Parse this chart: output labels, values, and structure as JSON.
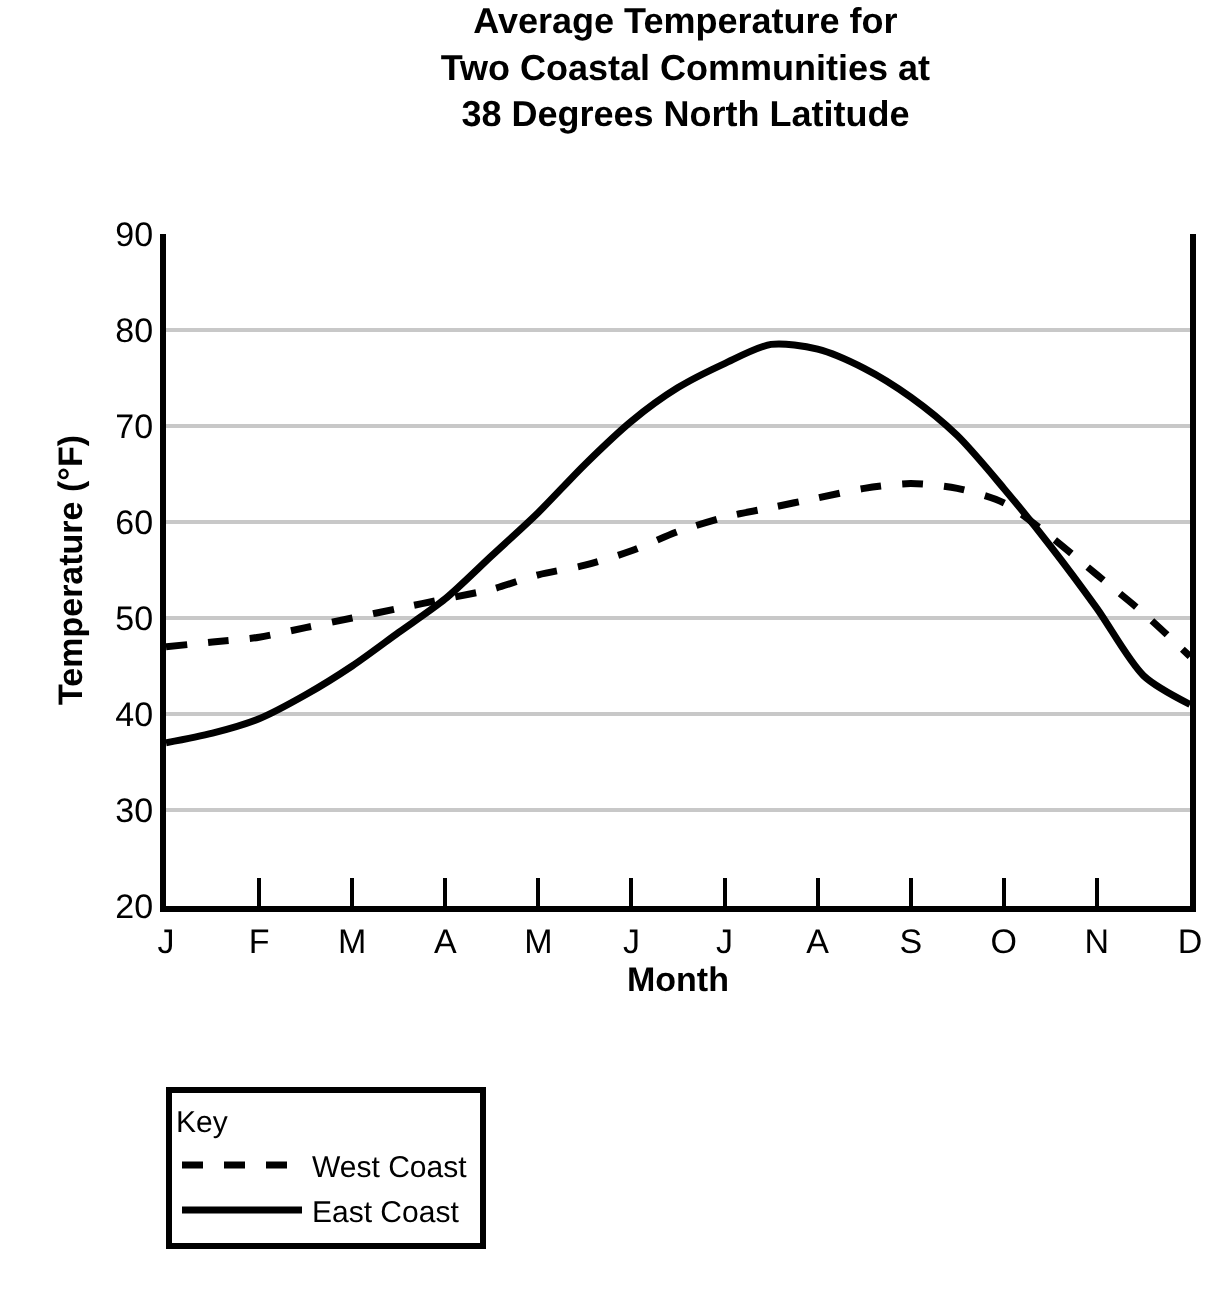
{
  "chart_data": {
    "type": "line",
    "title": "Average Temperature for\nTwo Coastal Communities at\n38 Degrees North Latitude",
    "xlabel": "Month",
    "ylabel": "Temperature (°F)",
    "legend_title": "Key",
    "categories": [
      "J",
      null,
      "F",
      null,
      "M",
      null,
      "A",
      null,
      "M",
      null,
      "J",
      null,
      "J",
      null,
      "A",
      null,
      "S",
      null,
      "O",
      null,
      "N",
      null,
      "D"
    ],
    "ylim": [
      20,
      90
    ],
    "yticks": [
      20,
      30,
      40,
      50,
      60,
      70,
      80,
      90
    ],
    "grid": "y",
    "legend": "bottom left",
    "marker": "none",
    "series": [
      {
        "name": "West Coast",
        "color": "#000000",
        "line_style": "dashed",
        "values": [
          47,
          47.5,
          48,
          49,
          50,
          51,
          52,
          53,
          54.5,
          55.5,
          57,
          59,
          60.5,
          61.5,
          62.5,
          63.5,
          64,
          63.5,
          62,
          58.5,
          54.5,
          50.5,
          46
        ]
      },
      {
        "name": "East Coast",
        "color": "#000000",
        "line_style": "solid",
        "values": [
          37,
          38,
          39.5,
          42,
          45,
          48.5,
          52,
          56.5,
          61,
          66,
          70.5,
          74,
          76.5,
          78.5,
          78,
          76,
          73,
          69,
          63.5,
          57.5,
          51,
          44,
          41
        ]
      }
    ]
  }
}
